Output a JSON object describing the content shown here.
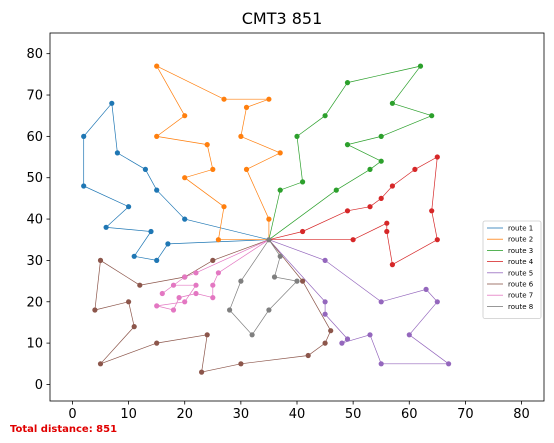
{
  "chart_data": {
    "type": "line",
    "title": "CMT3 851",
    "xlabel": "",
    "ylabel": "",
    "xlim": [
      -4,
      84
    ],
    "ylim": [
      -4,
      85
    ],
    "xticks": [
      0,
      10,
      20,
      30,
      40,
      50,
      60,
      70,
      80
    ],
    "yticks": [
      0,
      10,
      20,
      30,
      40,
      50,
      60,
      70,
      80
    ],
    "grid": false,
    "legend_position": "right",
    "depot": [
      35,
      35
    ],
    "footer": "Total distance: 851",
    "series": [
      {
        "name": "route 1",
        "color": "#1f77b4",
        "points": [
          [
            35,
            35
          ],
          [
            20,
            40
          ],
          [
            15,
            47
          ],
          [
            13,
            52
          ],
          [
            8,
            56
          ],
          [
            7,
            68
          ],
          [
            2,
            60
          ],
          [
            2,
            48
          ],
          [
            10,
            43
          ],
          [
            6,
            38
          ],
          [
            14,
            37
          ],
          [
            11,
            31
          ],
          [
            15,
            30
          ],
          [
            17,
            34
          ],
          [
            35,
            35
          ]
        ]
      },
      {
        "name": "route 2",
        "color": "#ff7f0e",
        "points": [
          [
            35,
            35
          ],
          [
            26,
            35
          ],
          [
            27,
            43
          ],
          [
            20,
            50
          ],
          [
            25,
            52
          ],
          [
            24,
            58
          ],
          [
            15,
            60
          ],
          [
            20,
            65
          ],
          [
            15,
            77
          ],
          [
            27,
            69
          ],
          [
            35,
            69
          ],
          [
            31,
            67
          ],
          [
            30,
            60
          ],
          [
            37,
            56
          ],
          [
            31,
            52
          ],
          [
            35,
            40
          ],
          [
            35,
            35
          ]
        ]
      },
      {
        "name": "route 3",
        "color": "#2ca02c",
        "points": [
          [
            35,
            35
          ],
          [
            37,
            47
          ],
          [
            41,
            49
          ],
          [
            40,
            60
          ],
          [
            45,
            65
          ],
          [
            49,
            73
          ],
          [
            62,
            77
          ],
          [
            57,
            68
          ],
          [
            64,
            65
          ],
          [
            55,
            60
          ],
          [
            49,
            58
          ],
          [
            55,
            54
          ],
          [
            53,
            52
          ],
          [
            47,
            47
          ],
          [
            35,
            35
          ]
        ]
      },
      {
        "name": "route 4",
        "color": "#d62728",
        "points": [
          [
            35,
            35
          ],
          [
            41,
            37
          ],
          [
            49,
            42
          ],
          [
            53,
            43
          ],
          [
            55,
            45
          ],
          [
            57,
            48
          ],
          [
            61,
            52
          ],
          [
            65,
            55
          ],
          [
            64,
            42
          ],
          [
            65,
            35
          ],
          [
            57,
            29
          ],
          [
            56,
            37
          ],
          [
            56,
            39
          ],
          [
            50,
            35
          ],
          [
            35,
            35
          ]
        ]
      },
      {
        "name": "route 5",
        "color": "#9467bd",
        "points": [
          [
            35,
            35
          ],
          [
            45,
            30
          ],
          [
            55,
            20
          ],
          [
            63,
            23
          ],
          [
            65,
            20
          ],
          [
            60,
            12
          ],
          [
            67,
            5
          ],
          [
            55,
            5
          ],
          [
            53,
            12
          ],
          [
            48,
            10
          ],
          [
            49,
            11
          ],
          [
            45,
            17
          ],
          [
            45,
            20
          ],
          [
            35,
            35
          ]
        ]
      },
      {
        "name": "route 6",
        "color": "#8c564b",
        "points": [
          [
            35,
            35
          ],
          [
            25,
            30
          ],
          [
            20,
            26
          ],
          [
            12,
            24
          ],
          [
            5,
            30
          ],
          [
            4,
            18
          ],
          [
            10,
            20
          ],
          [
            11,
            14
          ],
          [
            5,
            5
          ],
          [
            15,
            10
          ],
          [
            24,
            12
          ],
          [
            23,
            3
          ],
          [
            30,
            5
          ],
          [
            42,
            7
          ],
          [
            45,
            10
          ],
          [
            46,
            13
          ],
          [
            41,
            25
          ],
          [
            35,
            35
          ]
        ]
      },
      {
        "name": "route 7",
        "color": "#e377c2",
        "points": [
          [
            35,
            35
          ],
          [
            26,
            27
          ],
          [
            25,
            24
          ],
          [
            25,
            21
          ],
          [
            22,
            22
          ],
          [
            19,
            21
          ],
          [
            18,
            18
          ],
          [
            15,
            19
          ],
          [
            20,
            20
          ],
          [
            22,
            24
          ],
          [
            18,
            24
          ],
          [
            16,
            22
          ],
          [
            20,
            26
          ],
          [
            22,
            27
          ],
          [
            35,
            35
          ]
        ]
      },
      {
        "name": "route 8",
        "color": "#7f7f7f",
        "points": [
          [
            35,
            35
          ],
          [
            30,
            25
          ],
          [
            28,
            18
          ],
          [
            32,
            12
          ],
          [
            35,
            18
          ],
          [
            40,
            25
          ],
          [
            36,
            26
          ],
          [
            37,
            31
          ],
          [
            35,
            35
          ]
        ]
      }
    ]
  }
}
